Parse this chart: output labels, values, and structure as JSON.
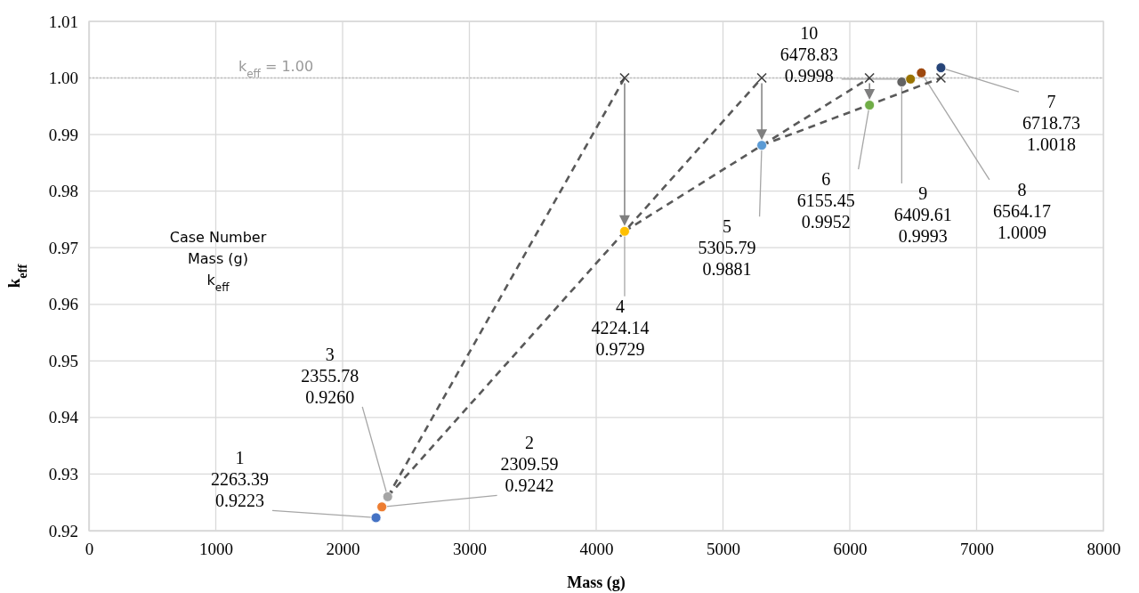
{
  "chart_data": {
    "type": "scatter",
    "xlabel": "Mass (g)",
    "ylabel": "k$_{eff}$",
    "xlim": [
      0,
      8000
    ],
    "xticks": [
      0,
      1000,
      2000,
      3000,
      4000,
      5000,
      6000,
      7000,
      8000
    ],
    "ylim": [
      0.92,
      1.01
    ],
    "yticks": [
      0.92,
      0.93,
      0.94,
      0.95,
      0.96,
      0.97,
      0.98,
      0.99,
      {
        "value": 1,
        "label": "1.00"
      },
      1.01
    ],
    "grid": true,
    "series": [
      {
        "marker": "circle",
        "x": [
          2263.39,
          2309.59,
          2355.78,
          4224.14,
          5305.79,
          6155.45,
          6718.73,
          6564.17,
          6409.61,
          6478.83
        ],
        "values": [
          0.9223,
          0.9242,
          0.926,
          0.9729,
          0.9881,
          0.9952,
          1.0018,
          1.0009,
          0.9993,
          0.9998
        ],
        "colors": [
          "#4472c4",
          "#ed7d31",
          "#a5a5a5",
          "#ffc000",
          "#5b9bd5",
          "#70ad47",
          "#264478",
          "#9e480e",
          "#636363",
          "#997300"
        ],
        "value_labels": [
          "1\n2263.39\n0.9223",
          "2\n2309.59\n0.9242",
          "3\n2355.78\n0.9260",
          "4\n4224.14\n0.9729",
          "5\n5305.79\n0.9881",
          "6\n6155.45\n0.9952",
          "7\n6718.73\n1.0018",
          "8\n6564.17\n1.0009",
          "9\n6409.61\n0.9993",
          "10\n6478.83\n0.9998"
        ]
      },
      {
        "type": "line",
        "line_style": "dashed",
        "marker": "none",
        "color": "#595959",
        "x": [
          2355.78,
          4224.14
        ],
        "values": [
          0.926,
          1
        ]
      },
      {
        "type": "line",
        "line_style": "dashed",
        "marker": "none",
        "color": "#595959",
        "x": [
          2355.78,
          5305.79
        ],
        "values": [
          0.926,
          1
        ]
      },
      {
        "type": "line",
        "line_style": "dashed",
        "marker": "none",
        "color": "#595959",
        "x": [
          4224.14,
          6155.45
        ],
        "values": [
          0.9729,
          1
        ]
      },
      {
        "type": "line",
        "line_style": "dashed",
        "marker": "none",
        "color": "#595959",
        "x": [
          5305.79,
          6718.73
        ],
        "values": [
          0.9881,
          1
        ]
      },
      {
        "type": "scatter",
        "marker": "cross",
        "color": "#404040",
        "x": [
          4224.14,
          5305.79,
          6155.45,
          6718.73
        ],
        "values": [
          1,
          1,
          1,
          1
        ]
      }
    ],
    "ref_lines": [
      {
        "axis": "y",
        "value": 1,
        "label": "k$_{eff}$ = 1.00",
        "color": "#bfbfbf",
        "line_style": "dotted"
      }
    ],
    "annotations": [
      "Case Number\nMass (g)\nk$_{eff}$"
    ]
  }
}
